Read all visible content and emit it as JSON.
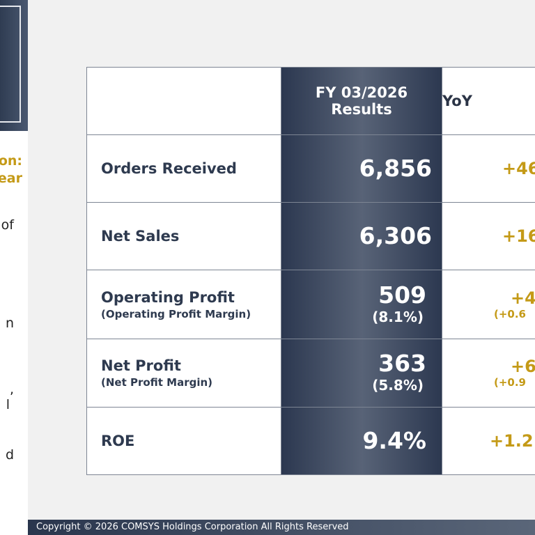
{
  "left_panel": {
    "gold_lines": [
      "on:",
      "ear"
    ],
    "text_fragments": [
      "of",
      "n",
      ",",
      "l",
      "d"
    ]
  },
  "table": {
    "header": {
      "results": "FY 03/2026 Results",
      "yoy": "YoY"
    },
    "rows": [
      {
        "label": "Orders Received",
        "value": "6,856",
        "yoy": "+46"
      },
      {
        "label": "Net Sales",
        "value": "6,306",
        "yoy": "+16"
      },
      {
        "label": "Operating Profit",
        "sub_label": "(Operating Profit Margin)",
        "value": "509",
        "value_sub": "(8.1%)",
        "yoy": "+4",
        "yoy_sub": "(+0.6"
      },
      {
        "label": "Net Profit",
        "sub_label": "(Net Profit Margin)",
        "value": "363",
        "value_sub": "(5.8%)",
        "yoy": "+6",
        "yoy_sub": "(+0.9"
      },
      {
        "label": "ROE",
        "value": "9.4%",
        "yoy": "+1.2"
      }
    ]
  },
  "footer": {
    "copyright": "Copyright © 2026 COMSYS Holdings Corporation All Rights Reserved"
  },
  "colors": {
    "navy": "#2c3850",
    "gold": "#c49a17",
    "label_text": "#2e3a4f"
  }
}
